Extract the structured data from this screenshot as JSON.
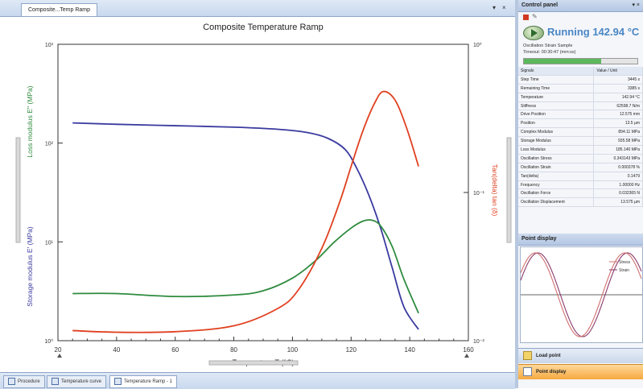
{
  "document_tab": {
    "title": "Composite...Temp Ramp"
  },
  "window_controls": {
    "dropdown_glyph": "▾",
    "close_glyph": "×",
    "pin_glyph": "▾ ×"
  },
  "chart_data": {
    "type": "line",
    "title": "Composite Temperature Ramp",
    "xlabel": "Temperature  T (°C)",
    "ylabel_left_storage": "Storage modulus  E' (MPa)",
    "ylabel_left_loss": "Loss modulus  E'' (MPa)",
    "ylabel_right": "Tan(delta)  tan (δ)",
    "xlim": [
      20,
      160
    ],
    "x_ticks": [
      20,
      40,
      60,
      80,
      100,
      120,
      140,
      160
    ],
    "x_tick_labels": [
      "20",
      "40",
      "60",
      "80",
      "100",
      "120",
      "140",
      "160"
    ],
    "y_left_scale": "log",
    "y_left_ticks": [
      "10³",
      "10²",
      "10¹",
      "10⁰"
    ],
    "y_right_scale": "log",
    "y_right_ticks": [
      "10⁰",
      "10⁻¹",
      "10⁻²"
    ],
    "grid": false,
    "series": [
      {
        "name": "Storage modulus",
        "color": "#3a3aa0",
        "axis": "left",
        "x": [
          25,
          40,
          60,
          80,
          95,
          105,
          112,
          118,
          122,
          126,
          130,
          134,
          138,
          143
        ],
        "y": [
          160,
          155,
          150,
          145,
          138,
          128,
          112,
          86,
          55,
          30,
          14,
          5.5,
          2.2,
          1.3
        ]
      },
      {
        "name": "Loss modulus",
        "color": "#2e8b3e",
        "axis": "left",
        "x": [
          25,
          40,
          60,
          80,
          90,
          100,
          108,
          114,
          120,
          124,
          127,
          130,
          134,
          138,
          143
        ],
        "y": [
          3.0,
          3.0,
          2.8,
          2.9,
          3.2,
          4.3,
          6.5,
          9.8,
          13.8,
          16.2,
          16.6,
          14.6,
          9.0,
          4.2,
          1.9
        ]
      },
      {
        "name": "Tan(delta)",
        "color": "#e04020",
        "axis": "right",
        "x": [
          25,
          40,
          60,
          80,
          95,
          102,
          110,
          116,
          120,
          124,
          128,
          131,
          135,
          139,
          143
        ],
        "y": [
          0.0117,
          0.0114,
          0.0115,
          0.0126,
          0.0165,
          0.022,
          0.042,
          0.085,
          0.15,
          0.26,
          0.4,
          0.48,
          0.42,
          0.27,
          0.15
        ]
      }
    ]
  },
  "bottom_tabs": [
    {
      "label": "Procedure"
    },
    {
      "label": "Temperature curve"
    },
    {
      "label": "Temperature Ramp - 1"
    }
  ],
  "control_panel": {
    "title": "Control panel",
    "status": "Running  142.94 °C",
    "status_detail": "Oscillation Strain Sample",
    "elapsed": "Timeout: 00:30:47  (mm:ss)",
    "progress": 0.68,
    "table_headers": [
      "Signals",
      "Value / Unit"
    ],
    "signals": [
      [
        "Step Time",
        "3445 s"
      ],
      [
        "Remaining Time",
        "3385 s"
      ],
      [
        "Temperature",
        "142.94 °C"
      ],
      [
        "Stiffness",
        "62598.7 N/m"
      ],
      [
        "Drive Position",
        "12.575 mm"
      ],
      [
        "Position",
        "13.5 µm"
      ],
      [
        "Complex Modulus",
        "894.11 MPa"
      ],
      [
        "Storage Modulus",
        "935.58 MPa"
      ],
      [
        "Loss Modulus",
        "185.140 MPa"
      ],
      [
        "Oscillation Stress",
        "0.343143 MPa"
      ],
      [
        "Oscillation Strain",
        "0.000378 %"
      ],
      [
        "Tan(delta)",
        "0.1479"
      ],
      [
        "Frequency",
        "1.00000 Hz"
      ],
      [
        "Oscillation Force",
        "0.032365 N"
      ],
      [
        "Oscillation Displacement",
        "13.575 µm"
      ]
    ]
  },
  "point_display": {
    "title": "Point display",
    "legend": [
      "Stress",
      "Strain"
    ],
    "stress_color": "#d07070",
    "strain_color": "#8a3a6a"
  },
  "nav": {
    "item1": "Load point",
    "item2": "Point display"
  }
}
